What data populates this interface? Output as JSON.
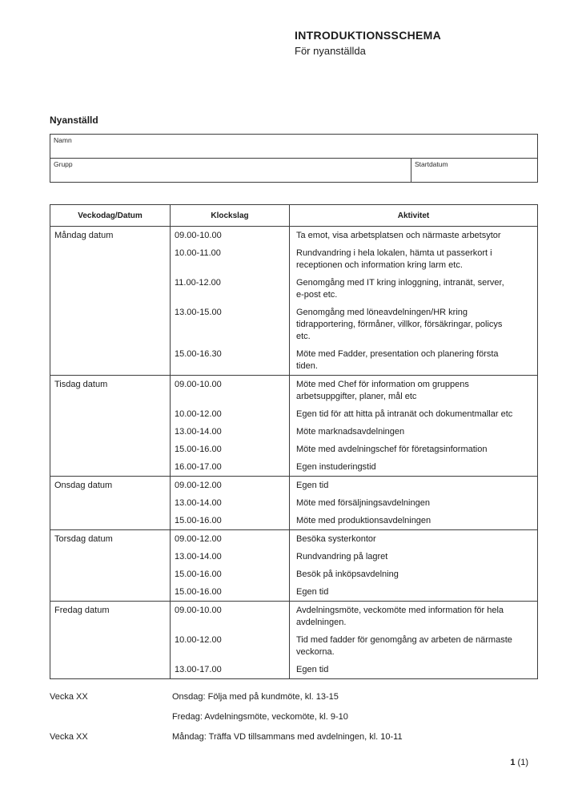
{
  "colors": {
    "background": "#ffffff",
    "text": "#1c1c1c",
    "table_border": "#3d3d3d"
  },
  "page": {
    "title": "INTRODUKTIONSSCHEMA",
    "subtitle": "För nyanställda"
  },
  "employee_form": {
    "heading": "Nyanställd",
    "fields": {
      "name_label": "Namn",
      "name_value": "",
      "group_label": "Grupp",
      "group_value": "",
      "start_date_label": "Startdatum",
      "start_date_value": ""
    }
  },
  "schedule": {
    "headers": [
      "Veckodag/Datum",
      "Klockslag",
      "Aktivitet"
    ],
    "days": [
      {
        "day": "Måndag datum",
        "entries": [
          {
            "time": "09.00-10.00",
            "activity": "Ta emot, visa arbetsplatsen och närmaste arbetsytor"
          },
          {
            "time": "10.00-11.00",
            "activity": "Rundvandring i hela lokalen, hämta ut passerkort i\nreceptionen och information kring larm etc."
          },
          {
            "time": "11.00-12.00",
            "activity": "Genomgång med IT kring inloggning, intranät, server,\ne-post etc."
          },
          {
            "time": "13.00-15.00",
            "activity": "Genomgång med löneavdelningen/HR kring\ntidrapportering, förmåner, villkor, försäkringar, policys\netc."
          },
          {
            "time": "15.00-16.30",
            "activity": "Möte med Fadder, presentation och planering första\ntiden."
          }
        ]
      },
      {
        "day": "Tisdag datum",
        "entries": [
          {
            "time": "09.00-10.00",
            "activity": "Möte med Chef för information om gruppens\narbetsuppgifter, planer, mål etc"
          },
          {
            "time": "10.00-12.00",
            "activity": "Egen tid för att hitta på intranät och dokumentmallar etc"
          },
          {
            "time": "13.00-14.00",
            "activity": "Möte marknadsavdelningen"
          },
          {
            "time": "15.00-16.00",
            "activity": "Möte med avdelningschef för företagsinformation"
          },
          {
            "time": "16.00-17.00",
            "activity": "Egen instuderingstid"
          }
        ]
      },
      {
        "day": "Onsdag datum",
        "entries": [
          {
            "time": "09.00-12.00",
            "activity": "Egen tid"
          },
          {
            "time": "13.00-14.00",
            "activity": "Möte med försäljningsavdelningen"
          },
          {
            "time": "15.00-16.00",
            "activity": "Möte med produktionsavdelningen"
          }
        ]
      },
      {
        "day": "Torsdag datum",
        "entries": [
          {
            "time": "09.00-12.00",
            "activity": "Besöka systerkontor"
          },
          {
            "time": "13.00-14.00",
            "activity": "Rundvandring på lagret"
          },
          {
            "time": "15.00-16.00",
            "activity": "Besök på inköpsavdelning"
          },
          {
            "time": "15.00-16.00",
            "activity": "Egen tid"
          }
        ]
      },
      {
        "day": "Fredag datum",
        "entries": [
          {
            "time": "09.00-10.00",
            "activity": "Avdelningsmöte, veckomöte med information för hela\navdelningen."
          },
          {
            "time": "10.00-12.00",
            "activity": "Tid med fadder för genomgång av arbeten de närmaste\nveckorna."
          },
          {
            "time": "13.00-17.00",
            "activity": "Egen tid"
          }
        ]
      }
    ]
  },
  "weekly_notes": [
    {
      "week": "Vecka XX",
      "lines": [
        "Onsdag: Följa med på kundmöte, kl. 13-15",
        "Fredag: Avdelningsmöte, veckomöte, kl. 9-10"
      ]
    },
    {
      "week": "Vecka XX",
      "lines": [
        "Måndag: Träffa VD tillsammans med avdelningen, kl. 10-11"
      ]
    }
  ],
  "footer": {
    "page_number": "1",
    "page_total": "(1)"
  }
}
